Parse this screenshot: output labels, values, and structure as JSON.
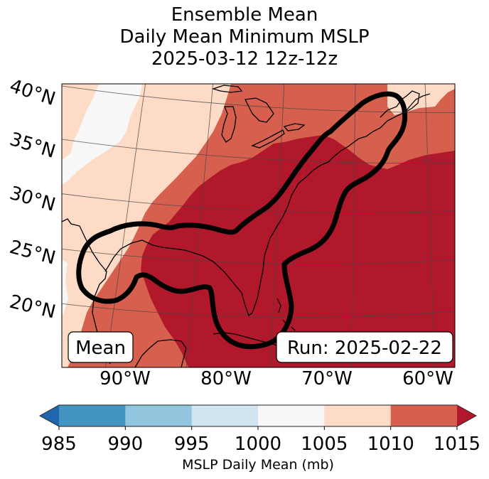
{
  "chart_data": {
    "type": "heatmap",
    "title_lines": [
      "Ensemble Mean",
      "Daily Mean Minimum MSLP",
      "2025-03-12 12z-12z"
    ],
    "map": {
      "projection": "conic",
      "lat_ticks": [
        "40°N",
        "35°N",
        "30°N",
        "25°N",
        "20°N"
      ],
      "lon_ticks": [
        "90°W",
        "80°W",
        "70°W",
        "60°W"
      ],
      "lat_values": [
        40,
        35,
        30,
        25,
        20
      ],
      "lon_values": [
        -90,
        -80,
        -70,
        -60
      ],
      "extent": {
        "lon_min": -97,
        "lon_max": -58,
        "lat_min": 17,
        "lat_max": 42
      },
      "gridlines": true,
      "coastlines": true
    },
    "field": {
      "name": "MSLP Daily Mean",
      "units": "mb",
      "regions": [
        {
          "level": "1000-1005",
          "description": "Central plains / Texas panhandle inland band",
          "color": "#f7f7f7"
        },
        {
          "level": "1005-1010",
          "description": "Western portion, Mexico and Plains",
          "color": "#fddbc7"
        },
        {
          "level": "1010-1015",
          "description": "Great Lakes, Mississippi valley, western Gulf, Atlantic Canada",
          "color": "#d6604d"
        },
        {
          "level": ">1015",
          "description": "Southeast US, eastern Gulf, western Atlantic",
          "color": "#b2182b"
        }
      ]
    },
    "contour": {
      "description": "Thick black contour enclosing Gulf coast, Florida, Bahamas and US East Coast to Nova Scotia",
      "color": "#000000"
    },
    "labels": {
      "left_box": "Mean",
      "right_box": "Run: 2025-02-22"
    },
    "colorbar": {
      "levels": [
        985,
        990,
        995,
        1000,
        1005,
        1010,
        1015
      ],
      "tick_labels": [
        "985",
        "990",
        "995",
        "1000",
        "1005",
        "1010",
        "1015"
      ],
      "colors": [
        "#4393c3",
        "#92c5de",
        "#d1e5f0",
        "#f7f7f7",
        "#fddbc7",
        "#d6604d"
      ],
      "extend_min_color": "#2166ac",
      "extend_max_color": "#b2182b",
      "extend": "both",
      "label": "MSLP Daily Mean (mb)",
      "orientation": "horizontal",
      "placement": "bottom"
    }
  }
}
